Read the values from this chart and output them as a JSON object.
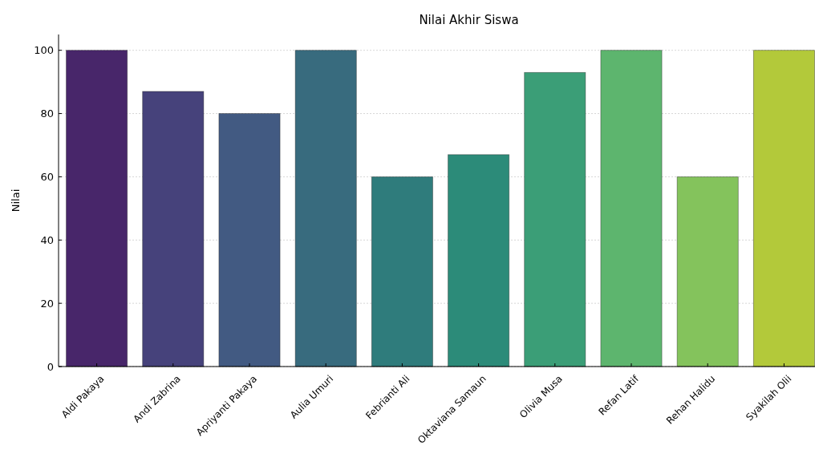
{
  "chart_data": {
    "type": "bar",
    "title": "Nilai Akhir Siswa",
    "ylabel": "Nilai",
    "categories": [
      "Aldi Pakaya",
      "Andi Zabrina",
      "Apriyanti Pakaya",
      "Aulia Umuri",
      "Febrianti Ali",
      "Oktaviana Samaun",
      "Olivia Musa",
      "Refan Latif",
      "Rehan Halidu",
      "Syakilah Olii"
    ],
    "values": [
      100,
      87,
      80,
      100,
      60,
      67,
      93,
      100,
      60,
      100
    ],
    "colors": [
      "#48266a",
      "#46427b",
      "#425a82",
      "#386b7e",
      "#2f7c7c",
      "#2c8b79",
      "#3b9e77",
      "#5db56e",
      "#84c35c",
      "#b3c93a"
    ],
    "ylim": [
      0,
      105
    ],
    "yticks": [
      0,
      20,
      40,
      60,
      80,
      100
    ],
    "grid": "y"
  }
}
